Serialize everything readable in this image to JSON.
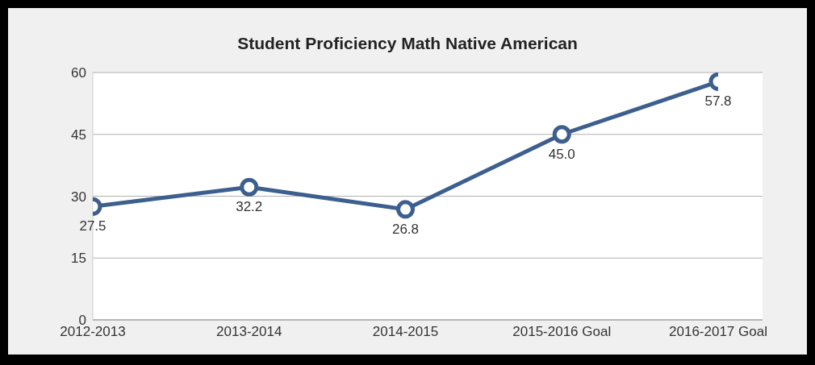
{
  "chart_data": {
    "type": "line",
    "title": "Student Proficiency Math Native American",
    "categories": [
      "2012-2013",
      "2013-2014",
      "2014-2015",
      "2015-2016 Goal",
      "2016-2017 Goal"
    ],
    "series": [
      {
        "color": "#3d5f8e",
        "values": [
          27.5,
          32.2,
          26.8,
          45.0,
          57.8
        ],
        "value_labels": [
          "27.5",
          "32.2",
          "26.8",
          "45.0",
          "57.8"
        ]
      }
    ],
    "ylim": [
      0,
      60
    ],
    "yticks": [
      0,
      15,
      30,
      45,
      60
    ],
    "grid": "y",
    "marker": "circle",
    "line_style": "solid"
  }
}
